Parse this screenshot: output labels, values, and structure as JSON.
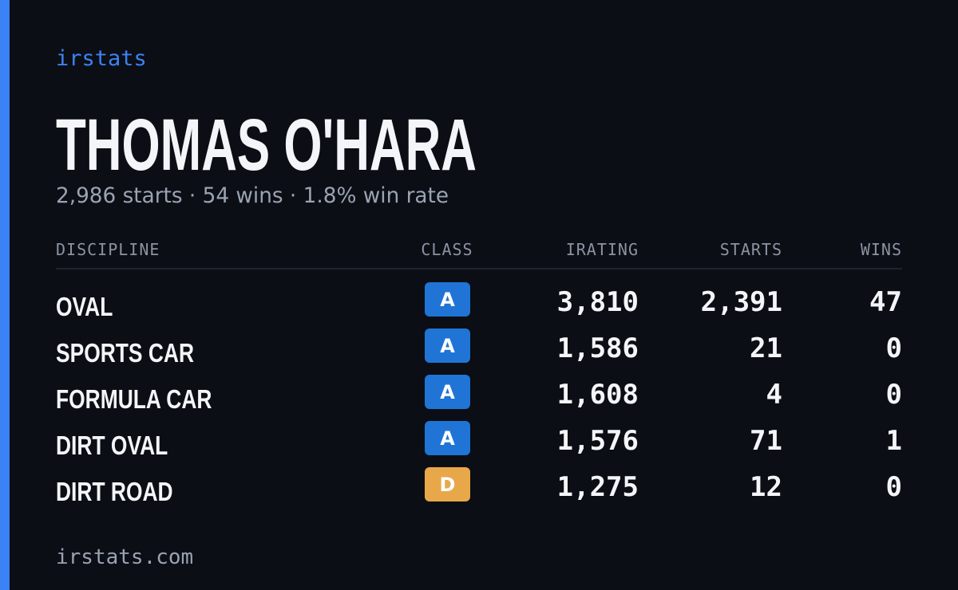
{
  "brand": "irstats",
  "driver": {
    "name": "THOMAS O'HARA",
    "summary": "2,986 starts · 54 wins · 1.8% win rate"
  },
  "table": {
    "headers": [
      "DISCIPLINE",
      "CLASS",
      "IRATING",
      "STARTS",
      "WINS"
    ],
    "rows": [
      {
        "discipline": "OVAL",
        "class": "A",
        "class_color": "#1f74d6",
        "irating": "3,810",
        "starts": "2,391",
        "wins": "47"
      },
      {
        "discipline": "SPORTS CAR",
        "class": "A",
        "class_color": "#1f74d6",
        "irating": "1,586",
        "starts": "21",
        "wins": "0"
      },
      {
        "discipline": "FORMULA CAR",
        "class": "A",
        "class_color": "#1f74d6",
        "irating": "1,608",
        "starts": "4",
        "wins": "0"
      },
      {
        "discipline": "DIRT OVAL",
        "class": "A",
        "class_color": "#1f74d6",
        "irating": "1,576",
        "starts": "71",
        "wins": "1"
      },
      {
        "discipline": "DIRT ROAD",
        "class": "D",
        "class_color": "#e8a84a",
        "irating": "1,275",
        "starts": "12",
        "wins": "0"
      }
    ]
  },
  "footer": "irstats.com"
}
